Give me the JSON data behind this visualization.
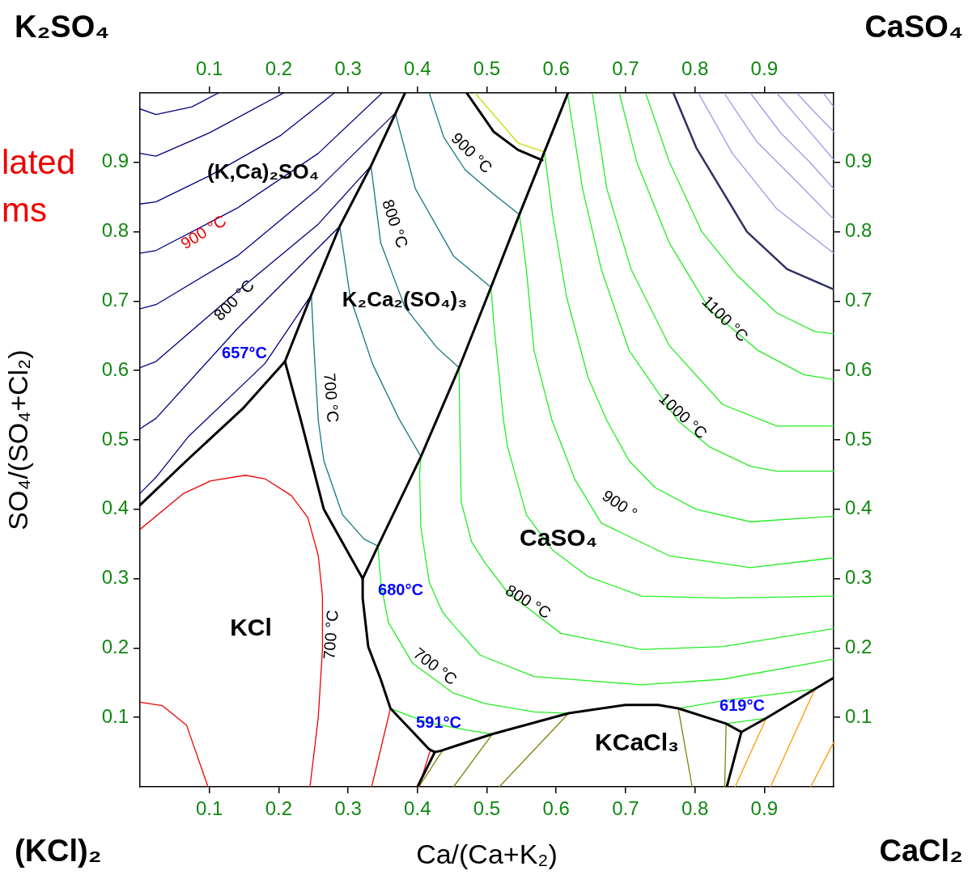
{
  "chart_data": {
    "type": "line",
    "xlabel": "Ca/(Ca+K₂)",
    "ylabel": "SO₄/(SO₄+Cl₂)",
    "xlim": [
      0,
      1
    ],
    "ylim": [
      0,
      1
    ],
    "x2lim": [
      0,
      1
    ],
    "y2lim": [
      0,
      1
    ],
    "xticks": [
      0.1,
      0.2,
      0.3,
      0.4,
      0.5,
      0.6,
      0.7,
      0.8,
      0.9
    ],
    "yticks": [
      0.1,
      0.2,
      0.3,
      0.4,
      0.5,
      0.6,
      0.7,
      0.8,
      0.9
    ],
    "x2ticks": [
      0.1,
      0.2,
      0.3,
      0.4,
      0.5,
      0.6,
      0.7,
      0.8,
      0.9
    ],
    "y2ticks": [
      0.1,
      0.2,
      0.3,
      0.4,
      0.5,
      0.6,
      0.7,
      0.8,
      0.9
    ],
    "grid": false,
    "legend": false,
    "marker": "none",
    "line_style": "solid",
    "series": [
      {
        "color": "#000000",
        "x": [
          0,
          0.067,
          0.148,
          0.209,
          0.247,
          0.288,
          0.333,
          0.382
        ],
        "values": [
          0.406,
          0.47,
          0.545,
          0.613,
          0.709,
          0.808,
          0.895,
          1.0
        ]
      },
      {
        "color": "#000000",
        "x": [
          0.209,
          0.232,
          0.265,
          0.321,
          0.321,
          0.329,
          0.347,
          0.361,
          0.382,
          0.417,
          0.425,
          0.434,
          0.452,
          0.508,
          0.618,
          0.7,
          0.747,
          0.776,
          0.845,
          0.867,
          0.903,
          0.973,
          1.0
        ],
        "values": [
          0.613,
          0.528,
          0.4,
          0.3,
          0.272,
          0.202,
          0.155,
          0.113,
          0.091,
          0.054,
          0.05,
          0.052,
          0.058,
          0.076,
          0.106,
          0.118,
          0.118,
          0.113,
          0.091,
          0.079,
          0.099,
          0.141,
          0.157
        ]
      },
      {
        "color": "#000000",
        "x": [
          0.321,
          0.343,
          0.405,
          0.46,
          0.506,
          0.547,
          0.583,
          0.617
        ],
        "values": [
          0.3,
          0.347,
          0.476,
          0.604,
          0.72,
          0.825,
          0.915,
          1.0
        ]
      },
      {
        "color": "#000000",
        "x": [
          0.471,
          0.51,
          0.545,
          0.58
        ],
        "values": [
          1.0,
          0.944,
          0.918,
          0.903
        ]
      },
      {
        "color": "#000000",
        "x": [
          0.425,
          0.4
        ],
        "values": [
          0.05,
          0
        ]
      },
      {
        "color": "#000000",
        "x": [
          0.867,
          0.846
        ],
        "values": [
          0.079,
          0
        ]
      },
      {
        "color": "#000080",
        "x": [
          0,
          0.023,
          0.075,
          0.113
        ],
        "values": [
          0.977,
          0.969,
          0.98,
          1.0
        ]
      },
      {
        "color": "#000080",
        "x": [
          0,
          0.023,
          0.101,
          0.207
        ],
        "values": [
          0.913,
          0.909,
          0.943,
          1.0
        ]
      },
      {
        "color": "#000080",
        "x": [
          0,
          0.023,
          0.101,
          0.203,
          0.28
        ],
        "values": [
          0.84,
          0.843,
          0.881,
          0.939,
          1.0
        ]
      },
      {
        "color": "#000080",
        "x": [
          0,
          0.023,
          0.14,
          0.257,
          0.349
        ],
        "values": [
          0.769,
          0.773,
          0.834,
          0.913,
          1.0
        ]
      },
      {
        "color": "#000080",
        "x": [
          0,
          0.023,
          0.14,
          0.257,
          0.368
        ],
        "values": [
          0.689,
          0.695,
          0.765,
          0.862,
          0.971
        ]
      },
      {
        "color": "#000080",
        "x": [
          0,
          0.023,
          0.14,
          0.257,
          0.333
        ],
        "values": [
          0.604,
          0.613,
          0.714,
          0.811,
          0.895
        ]
      },
      {
        "color": "#000080",
        "x": [
          0,
          0.023,
          0.14,
          0.288
        ],
        "values": [
          0.516,
          0.531,
          0.66,
          0.808
        ]
      },
      {
        "color": "#000080",
        "x": [
          0,
          0.023,
          0.07,
          0.18,
          0.247
        ],
        "values": [
          0.423,
          0.446,
          0.505,
          0.61,
          0.709
        ]
      },
      {
        "color": "#117780",
        "x": [
          0.247,
          0.251,
          0.257,
          0.265,
          0.292,
          0.323,
          0.343
        ],
        "values": [
          0.709,
          0.629,
          0.528,
          0.47,
          0.392,
          0.357,
          0.347
        ]
      },
      {
        "color": "#117780",
        "x": [
          0.288,
          0.303,
          0.335,
          0.373,
          0.405
        ],
        "values": [
          0.808,
          0.706,
          0.61,
          0.531,
          0.476
        ]
      },
      {
        "color": "#117780",
        "x": [
          0.333,
          0.347,
          0.382,
          0.428,
          0.46
        ],
        "values": [
          0.895,
          0.784,
          0.691,
          0.633,
          0.604
        ]
      },
      {
        "color": "#117780",
        "x": [
          0.368,
          0.397,
          0.452,
          0.506
        ],
        "values": [
          0.971,
          0.862,
          0.765,
          0.72
        ]
      },
      {
        "color": "#117780",
        "x": [
          0.417,
          0.438,
          0.469,
          0.51,
          0.547
        ],
        "values": [
          1.0,
          0.936,
          0.889,
          0.854,
          0.825
        ]
      },
      {
        "color": "#ccdd00",
        "x": [
          0.483,
          0.545,
          0.583
        ],
        "values": [
          1.0,
          0.928,
          0.915
        ]
      },
      {
        "color": "#22ee22",
        "x": [
          0.343,
          0.347,
          0.358,
          0.393,
          0.452,
          0.498,
          0.568,
          0.618
        ],
        "values": [
          0.347,
          0.295,
          0.237,
          0.178,
          0.135,
          0.12,
          0.108,
          0.106
        ]
      },
      {
        "color": "#22ee22",
        "x": [
          0.361,
          0.413,
          0.47,
          0.508
        ],
        "values": [
          0.113,
          0.093,
          0.082,
          0.076
        ]
      },
      {
        "color": "#22ee22",
        "x": [
          0.405,
          0.403,
          0.405,
          0.417,
          0.436,
          0.452,
          0.49,
          0.568,
          0.723,
          0.84,
          1.0
        ],
        "values": [
          0.476,
          0.45,
          0.373,
          0.295,
          0.252,
          0.233,
          0.19,
          0.159,
          0.147,
          0.155,
          0.184
        ]
      },
      {
        "color": "#22ee22",
        "x": [
          0.46,
          0.461,
          0.463,
          0.478,
          0.498,
          0.53,
          0.607,
          0.723,
          0.84,
          1.0
        ],
        "values": [
          0.604,
          0.528,
          0.411,
          0.353,
          0.322,
          0.28,
          0.221,
          0.198,
          0.202,
          0.228
        ]
      },
      {
        "color": "#22ee22",
        "x": [
          0.506,
          0.51,
          0.518,
          0.524,
          0.53,
          0.557,
          0.595,
          0.646,
          0.723,
          0.84,
          1.0
        ],
        "values": [
          0.72,
          0.668,
          0.59,
          0.528,
          0.49,
          0.392,
          0.341,
          0.303,
          0.275,
          0.272,
          0.275
        ]
      },
      {
        "color": "#22ee22",
        "x": [
          0.547,
          0.557,
          0.568,
          0.594,
          0.627,
          0.665,
          0.763,
          0.88,
          1.0
        ],
        "values": [
          0.825,
          0.746,
          0.629,
          0.528,
          0.443,
          0.38,
          0.333,
          0.316,
          0.33
        ]
      },
      {
        "color": "#22ee22",
        "x": [
          0.583,
          0.595,
          0.615,
          0.646,
          0.673,
          0.705,
          0.743,
          0.802,
          0.88,
          1.0
        ],
        "values": [
          0.915,
          0.823,
          0.706,
          0.59,
          0.528,
          0.47,
          0.431,
          0.4,
          0.382,
          0.39
        ]
      },
      {
        "color": "#22ee22",
        "x": [
          0.617,
          0.638,
          0.665,
          0.705,
          0.775,
          0.821,
          0.88,
          0.918,
          1.0
        ],
        "values": [
          0.995,
          0.862,
          0.746,
          0.629,
          0.528,
          0.49,
          0.462,
          0.455,
          0.455
        ]
      },
      {
        "color": "#22ee22",
        "x": [
          0.652,
          0.673,
          0.708,
          0.763,
          0.84,
          0.918,
          1.0
        ],
        "values": [
          1.0,
          0.862,
          0.746,
          0.636,
          0.551,
          0.52,
          0.52
        ]
      },
      {
        "color": "#22ee22",
        "x": [
          0.691,
          0.716,
          0.763,
          0.821,
          0.891,
          0.957,
          1.0
        ],
        "values": [
          1.0,
          0.901,
          0.784,
          0.688,
          0.629,
          0.594,
          0.587
        ]
      },
      {
        "color": "#22ee22",
        "x": [
          0.729,
          0.763,
          0.81,
          0.86,
          0.918,
          0.973,
          1.0
        ],
        "values": [
          1.0,
          0.901,
          0.8,
          0.738,
          0.683,
          0.656,
          0.653
        ]
      },
      {
        "color": "#22ee22",
        "x": [
          0.776,
          0.84,
          0.973
        ],
        "values": [
          0.113,
          0.124,
          0.141
        ]
      },
      {
        "color": "#22ee22",
        "x": [
          0.845,
          0.903
        ],
        "values": [
          0.091,
          0.099
        ]
      },
      {
        "color": "#303060",
        "x": [
          0.769,
          0.802,
          0.875,
          0.933,
          1.0
        ],
        "values": [
          1.0,
          0.921,
          0.8,
          0.746,
          0.717
        ]
      },
      {
        "color": "#9999ee",
        "x": [
          0.805,
          0.854,
          0.918,
          1.0
        ],
        "values": [
          1.0,
          0.913,
          0.833,
          0.769
        ]
      },
      {
        "color": "#9999ee",
        "x": [
          0.842,
          0.889,
          0.947,
          1.0
        ],
        "values": [
          1.0,
          0.93,
          0.872,
          0.818
        ]
      },
      {
        "color": "#9999ee",
        "x": [
          0.88,
          0.924,
          0.965,
          1.0
        ],
        "values": [
          1.0,
          0.942,
          0.901,
          0.862
        ]
      },
      {
        "color": "#9999ee",
        "x": [
          0.918,
          0.953,
          1.0
        ],
        "values": [
          1.0,
          0.959,
          0.904
        ]
      },
      {
        "color": "#9999ee",
        "x": [
          0.947,
          0.971,
          1.0
        ],
        "values": [
          1.0,
          0.974,
          0.944
        ]
      },
      {
        "color": "#9999ee",
        "x": [
          0.985,
          1.0
        ],
        "values": [
          1.0,
          0.98
        ]
      },
      {
        "color": "#ee0000",
        "x": [
          0,
          0.063,
          0.102,
          0.152,
          0.18,
          0.218,
          0.242,
          0.257,
          0.263,
          0.263,
          0.257,
          0.245
        ],
        "values": [
          0.371,
          0.423,
          0.441,
          0.449,
          0.444,
          0.42,
          0.388,
          0.333,
          0.275,
          0.198,
          0.1,
          0
        ]
      },
      {
        "color": "#ee0000",
        "x": [
          0,
          0.032,
          0.067,
          0.098
        ],
        "values": [
          0.122,
          0.117,
          0.089,
          0
        ]
      },
      {
        "color": "#ee0000",
        "x": [
          0.334,
          0.361
        ],
        "values": [
          0,
          0.113
        ]
      },
      {
        "color": "#ee0000",
        "x": [
          0.402,
          0.419
        ],
        "values": [
          0,
          0.054
        ]
      },
      {
        "color": "#808000",
        "x": [
          0.402,
          0.436
        ],
        "values": [
          0,
          0.052
        ]
      },
      {
        "color": "#808000",
        "x": [
          0.452,
          0.508
        ],
        "values": [
          0,
          0.076
        ]
      },
      {
        "color": "#808000",
        "x": [
          0.518,
          0.618
        ],
        "values": [
          0,
          0.106
        ]
      },
      {
        "color": "#808000",
        "x": [
          0.796,
          0.776
        ],
        "values": [
          0,
          0.113
        ]
      },
      {
        "color": "#808000",
        "x": [
          0.843,
          0.845
        ],
        "values": [
          0,
          0.091
        ]
      },
      {
        "color": "#ff9900",
        "x": [
          0.858,
          0.903
        ],
        "values": [
          0,
          0.099
        ]
      },
      {
        "color": "#ff9900",
        "x": [
          0.909,
          0.973
        ],
        "values": [
          0,
          0.141
        ]
      },
      {
        "color": "#ff9900",
        "x": [
          0.967,
          1.0
        ],
        "values": [
          0,
          0.064
        ]
      }
    ],
    "annotations": [
      "(K,Ca)₂SO₄",
      "K₂Ca₂(SO₄)₃",
      "CaSO₄",
      "KCl",
      "KCaCl₃",
      "900 °C",
      "800 °C",
      "657°C",
      "700 °C",
      "800 °C",
      "900 °C",
      "1100 °C",
      "1000 °C",
      "900 °",
      "800 °C",
      "680°C",
      "700 °C",
      "700 °C",
      "591°C",
      "619°C",
      "K₂SO₄",
      "CaSO₄",
      "(KCl)₂",
      "CaCl₂",
      "lated",
      "ms"
    ]
  }
}
